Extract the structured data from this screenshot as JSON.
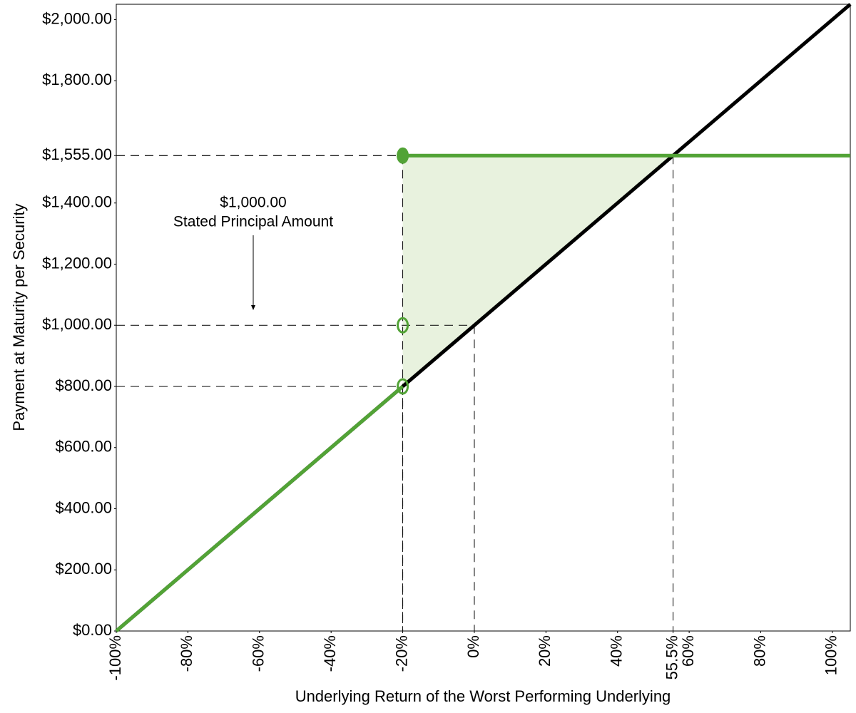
{
  "chart_data": {
    "type": "line",
    "xlabel": "Underlying Return of the Worst Performing Underlying",
    "ylabel": "Payment at Maturity per Security",
    "annotation": [
      "$1,000.00",
      "Stated Principal Amount"
    ],
    "xlim": [
      -100,
      105
    ],
    "ylim": [
      0,
      2050
    ],
    "xticks": [
      {
        "value": -100,
        "label": "-100%"
      },
      {
        "value": -80,
        "label": "-80%"
      },
      {
        "value": -60,
        "label": "-60%"
      },
      {
        "value": -40,
        "label": "-40%"
      },
      {
        "value": -20,
        "label": "-20%"
      },
      {
        "value": 0,
        "label": "0%"
      },
      {
        "value": 20,
        "label": "20%"
      },
      {
        "value": 40,
        "label": "40%"
      },
      {
        "value": 55.5,
        "label": "55.5%"
      },
      {
        "value": 60,
        "label": "60%"
      },
      {
        "value": 80,
        "label": "80%"
      },
      {
        "value": 100,
        "label": "100%"
      }
    ],
    "yticks": [
      {
        "value": 0,
        "label": "$0.00"
      },
      {
        "value": 200,
        "label": "$200.00"
      },
      {
        "value": 400,
        "label": "$400.00"
      },
      {
        "value": 600,
        "label": "$600.00"
      },
      {
        "value": 800,
        "label": "$800.00"
      },
      {
        "value": 1000,
        "label": "$1,000.00"
      },
      {
        "value": 1200,
        "label": "$1,200.00"
      },
      {
        "value": 1400,
        "label": "$1,400.00"
      },
      {
        "value": 1555,
        "label": "$1,555.00"
      },
      {
        "value": 1800,
        "label": "$1,800.00"
      },
      {
        "value": 2000,
        "label": "$2,000.00"
      }
    ],
    "series": [
      {
        "color": "#000000",
        "x": [
          -100,
          105
        ],
        "values": [
          0,
          2050
        ]
      },
      {
        "color": "#52a336",
        "x": [
          -100,
          -20,
          -20,
          -20,
          105
        ],
        "values": [
          0,
          800,
          null,
          1555,
          1555
        ]
      }
    ],
    "shaded_region": {
      "color": "#e8f2de",
      "x": [
        -20,
        -20,
        55.5
      ],
      "y": [
        800,
        1555,
        1555
      ]
    },
    "markers": [
      {
        "x": -20,
        "y": 1555,
        "filled": true
      },
      {
        "x": -20,
        "y": 1000,
        "filled": false
      },
      {
        "x": -20,
        "y": 800,
        "filled": false
      }
    ],
    "reference_points": [
      {
        "x": -20,
        "y": 1555
      },
      {
        "x": 0,
        "y": 1000
      },
      {
        "x": -20,
        "y": 800
      },
      {
        "x": 55.5,
        "y": 1555
      }
    ]
  }
}
